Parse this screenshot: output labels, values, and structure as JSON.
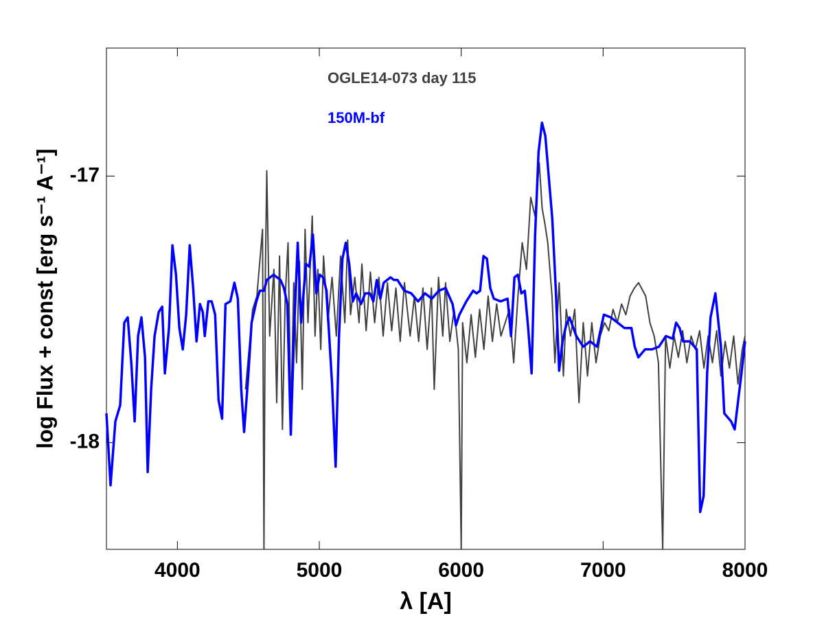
{
  "chart_data": {
    "type": "line",
    "xlabel": "λ [A]",
    "ylabel": "log Flux + const [erg s⁻¹ A⁻¹]",
    "xlim": [
      3500,
      8000
    ],
    "xticks": [
      4000,
      5000,
      6000,
      7000,
      8000
    ],
    "ylim": [
      -18.4,
      -16.52
    ],
    "yticks": [
      -18,
      -17
    ],
    "series": [
      {
        "name": "OGLE14-073 day 115",
        "color": "#404040",
        "x": [
          4480,
          4530,
          4560,
          4600,
          4610,
          4620,
          4630,
          4650,
          4680,
          4700,
          4720,
          4740,
          4760,
          4780,
          4800,
          4820,
          4840,
          4860,
          4880,
          4900,
          4920,
          4950,
          4970,
          4990,
          5010,
          5030,
          5060,
          5090,
          5120,
          5150,
          5180,
          5200,
          5220,
          5250,
          5280,
          5300,
          5330,
          5360,
          5390,
          5420,
          5450,
          5480,
          5510,
          5540,
          5570,
          5600,
          5640,
          5670,
          5700,
          5730,
          5760,
          5790,
          5810,
          5840,
          5870,
          5890,
          5920,
          5950,
          5980,
          6000,
          6010,
          6040,
          6070,
          6100,
          6130,
          6160,
          6190,
          6220,
          6250,
          6280,
          6310,
          6340,
          6370,
          6400,
          6430,
          6460,
          6490,
          6520,
          6550,
          6570,
          6590,
          6610,
          6640,
          6660,
          6690,
          6720,
          6740,
          6770,
          6800,
          6830,
          6860,
          6890,
          6920,
          6950,
          6980,
          7010,
          7040,
          7070,
          7100,
          7130,
          7160,
          7190,
          7220,
          7250,
          7270,
          7300,
          7330,
          7360,
          7390,
          7420,
          7440,
          7470,
          7500,
          7530,
          7560,
          7590,
          7620,
          7650,
          7680,
          7710,
          7740,
          7770,
          7800,
          7830,
          7860,
          7890,
          7920,
          7950,
          7980,
          8000
        ],
        "values": [
          -17.8,
          -17.5,
          -17.45,
          -17.2,
          -18.4,
          -17.35,
          -16.98,
          -17.6,
          -17.35,
          -17.85,
          -17.3,
          -17.95,
          -17.45,
          -17.25,
          -17.9,
          -17.4,
          -17.7,
          -17.32,
          -17.8,
          -17.2,
          -17.55,
          -17.15,
          -17.6,
          -17.35,
          -17.65,
          -17.3,
          -17.55,
          -17.38,
          -17.6,
          -17.3,
          -17.55,
          -17.24,
          -17.52,
          -17.38,
          -17.55,
          -17.33,
          -17.58,
          -17.36,
          -17.55,
          -17.38,
          -17.6,
          -17.4,
          -17.58,
          -17.42,
          -17.62,
          -17.4,
          -17.6,
          -17.45,
          -17.62,
          -17.42,
          -17.65,
          -17.42,
          -17.8,
          -17.38,
          -17.6,
          -17.4,
          -17.62,
          -17.5,
          -17.65,
          -18.4,
          -17.55,
          -17.7,
          -17.52,
          -17.68,
          -17.5,
          -17.65,
          -17.45,
          -17.62,
          -17.48,
          -17.6,
          -17.55,
          -17.5,
          -17.7,
          -17.45,
          -17.25,
          -17.35,
          -17.08,
          -17.15,
          -16.95,
          -17.12,
          -17.18,
          -17.25,
          -17.45,
          -17.7,
          -17.4,
          -17.75,
          -17.5,
          -17.6,
          -17.5,
          -17.85,
          -17.55,
          -17.75,
          -17.55,
          -17.7,
          -17.6,
          -17.55,
          -17.58,
          -17.5,
          -17.55,
          -17.48,
          -17.52,
          -17.45,
          -17.42,
          -17.4,
          -17.42,
          -17.45,
          -17.55,
          -17.6,
          -17.7,
          -18.4,
          -17.6,
          -17.72,
          -17.6,
          -17.68,
          -17.58,
          -17.7,
          -17.6,
          -17.65,
          -17.58,
          -17.72,
          -17.6,
          -17.7,
          -17.58,
          -17.75,
          -17.62,
          -17.72,
          -17.6,
          -17.78,
          -17.65,
          -17.6
        ]
      },
      {
        "name": "150M-bf",
        "color": "#0000ff",
        "x": [
          3500,
          3529,
          3563,
          3597,
          3626,
          3650,
          3675,
          3699,
          3723,
          3747,
          3772,
          3791,
          3815,
          3839,
          3868,
          3893,
          3912,
          3941,
          3965,
          3990,
          4014,
          4038,
          4062,
          4087,
          4111,
          4135,
          4159,
          4179,
          4193,
          4218,
          4242,
          4266,
          4290,
          4315,
          4339,
          4373,
          4402,
          4426,
          4450,
          4470,
          4499,
          4523,
          4557,
          4581,
          4610,
          4630,
          4654,
          4678,
          4702,
          4727,
          4751,
          4775,
          4799,
          4824,
          4848,
          4872,
          4906,
          4930,
          4955,
          4979,
          5003,
          5027,
          5051,
          5090,
          5115,
          5139,
          5163,
          5187,
          5211,
          5236,
          5260,
          5294,
          5323,
          5357,
          5381,
          5405,
          5430,
          5454,
          5478,
          5502,
          5527,
          5551,
          5599,
          5648,
          5696,
          5745,
          5793,
          5842,
          5890,
          5939,
          5963,
          5987,
          6036,
          6084,
          6108,
          6133,
          6157,
          6181,
          6205,
          6230,
          6278,
          6327,
          6351,
          6375,
          6399,
          6424,
          6448,
          6472,
          6496,
          6521,
          6545,
          6569,
          6593,
          6618,
          6642,
          6666,
          6690,
          6714,
          6739,
          6763,
          6811,
          6860,
          6908,
          6957,
          7005,
          7054,
          7102,
          7151,
          7199,
          7223,
          7248,
          7296,
          7345,
          7393,
          7442,
          7490,
          7514,
          7539,
          7563,
          7611,
          7660,
          7684,
          7708,
          7733,
          7757,
          7791,
          7830,
          7854,
          7902,
          7927,
          7975,
          8000
        ],
        "values": [
          -17.89,
          -18.16,
          -17.92,
          -17.86,
          -17.55,
          -17.53,
          -17.7,
          -17.92,
          -17.6,
          -17.53,
          -17.68,
          -18.11,
          -17.8,
          -17.6,
          -17.51,
          -17.49,
          -17.74,
          -17.57,
          -17.26,
          -17.37,
          -17.57,
          -17.65,
          -17.52,
          -17.26,
          -17.42,
          -17.62,
          -17.48,
          -17.51,
          -17.6,
          -17.47,
          -17.47,
          -17.52,
          -17.84,
          -17.91,
          -17.48,
          -17.47,
          -17.4,
          -17.46,
          -17.8,
          -17.96,
          -17.75,
          -17.55,
          -17.47,
          -17.43,
          -17.43,
          -17.39,
          -17.38,
          -17.37,
          -17.38,
          -17.39,
          -17.42,
          -17.48,
          -17.97,
          -17.56,
          -17.25,
          -17.55,
          -17.33,
          -17.34,
          -17.22,
          -17.44,
          -17.37,
          -17.38,
          -17.43,
          -17.78,
          -18.09,
          -17.6,
          -17.31,
          -17.25,
          -17.33,
          -17.47,
          -17.44,
          -17.48,
          -17.44,
          -17.44,
          -17.47,
          -17.39,
          -17.46,
          -17.4,
          -17.39,
          -17.38,
          -17.39,
          -17.39,
          -17.43,
          -17.44,
          -17.47,
          -17.44,
          -17.46,
          -17.43,
          -17.42,
          -17.48,
          -17.56,
          -17.52,
          -17.47,
          -17.43,
          -17.44,
          -17.43,
          -17.3,
          -17.31,
          -17.42,
          -17.46,
          -17.47,
          -17.46,
          -17.6,
          -17.38,
          -17.37,
          -17.44,
          -17.43,
          -17.57,
          -17.74,
          -17.22,
          -16.91,
          -16.8,
          -16.85,
          -17.01,
          -17.16,
          -17.42,
          -17.73,
          -17.62,
          -17.56,
          -17.53,
          -17.6,
          -17.64,
          -17.62,
          -17.64,
          -17.52,
          -17.53,
          -17.55,
          -17.57,
          -17.57,
          -17.64,
          -17.68,
          -17.65,
          -17.65,
          -17.64,
          -17.6,
          -17.61,
          -17.55,
          -17.57,
          -17.62,
          -17.62,
          -17.65,
          -18.26,
          -18.2,
          -17.74,
          -17.53,
          -17.44,
          -17.64,
          -17.89,
          -17.92,
          -17.95,
          -17.74,
          -17.62
        ]
      }
    ]
  }
}
